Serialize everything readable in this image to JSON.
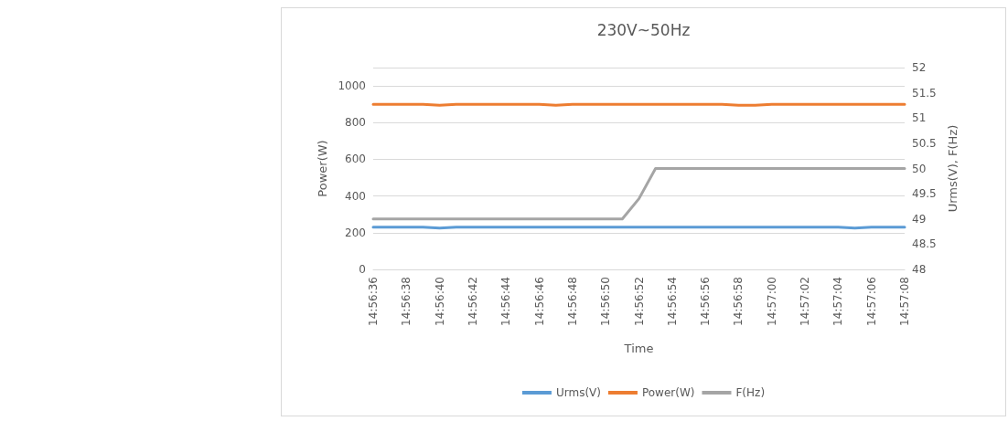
{
  "chart_data": {
    "type": "line",
    "title": "230V~50Hz",
    "xlabel": "Time",
    "ylabel": "Power(W)",
    "y2label": "Urms(V), F(Hz)",
    "categories": [
      "14:56:36",
      null,
      "14:56:38",
      null,
      "14:56:40",
      null,
      "14:56:42",
      null,
      "14:56:44",
      null,
      "14:56:46",
      null,
      "14:56:48",
      null,
      "14:56:50",
      null,
      "14:56:52",
      null,
      "14:56:54",
      null,
      "14:56:56",
      null,
      "14:56:58",
      null,
      "14:57:00",
      null,
      "14:57:02",
      null,
      "14:57:04",
      null,
      "14:57:06",
      null,
      "14:57:08"
    ],
    "series": [
      {
        "name": "Urms(V)",
        "color": "#5b9bd5",
        "values": [
          230,
          230,
          230,
          230,
          225,
          230,
          230,
          230,
          230,
          230,
          230,
          230,
          230,
          230,
          230,
          230,
          230,
          230,
          230,
          230,
          230,
          230,
          230,
          230,
          230,
          230,
          230,
          230,
          230,
          225,
          230,
          230,
          230
        ]
      },
      {
        "name": "Power(W)",
        "color": "#ed7d31",
        "values": [
          900,
          900,
          900,
          900,
          895,
          900,
          900,
          900,
          900,
          900,
          900,
          895,
          900,
          900,
          900,
          900,
          900,
          900,
          900,
          900,
          900,
          900,
          895,
          895,
          900,
          900,
          900,
          900,
          900,
          900,
          900,
          900,
          900
        ]
      },
      {
        "name": "F(Hz)",
        "color": "#a5a5a5",
        "axis": "y2",
        "values": [
          49,
          49,
          49,
          49,
          49,
          49,
          49,
          49,
          49,
          49,
          49,
          49,
          49,
          49,
          49,
          49,
          49.4,
          50,
          50,
          50,
          50,
          50,
          50,
          50,
          50,
          50,
          50,
          50,
          50,
          50,
          50,
          50,
          50
        ]
      }
    ],
    "ylim": [
      0,
      1100
    ],
    "yticks": [
      0,
      200,
      400,
      600,
      800,
      1000
    ],
    "y2lim": [
      48,
      52
    ],
    "y2ticks": [
      48,
      48.5,
      49,
      49.5,
      50,
      50.5,
      51,
      51.5,
      52
    ],
    "grid": "y",
    "legend": "bottom",
    "marker": "none",
    "line_style": "solid"
  }
}
